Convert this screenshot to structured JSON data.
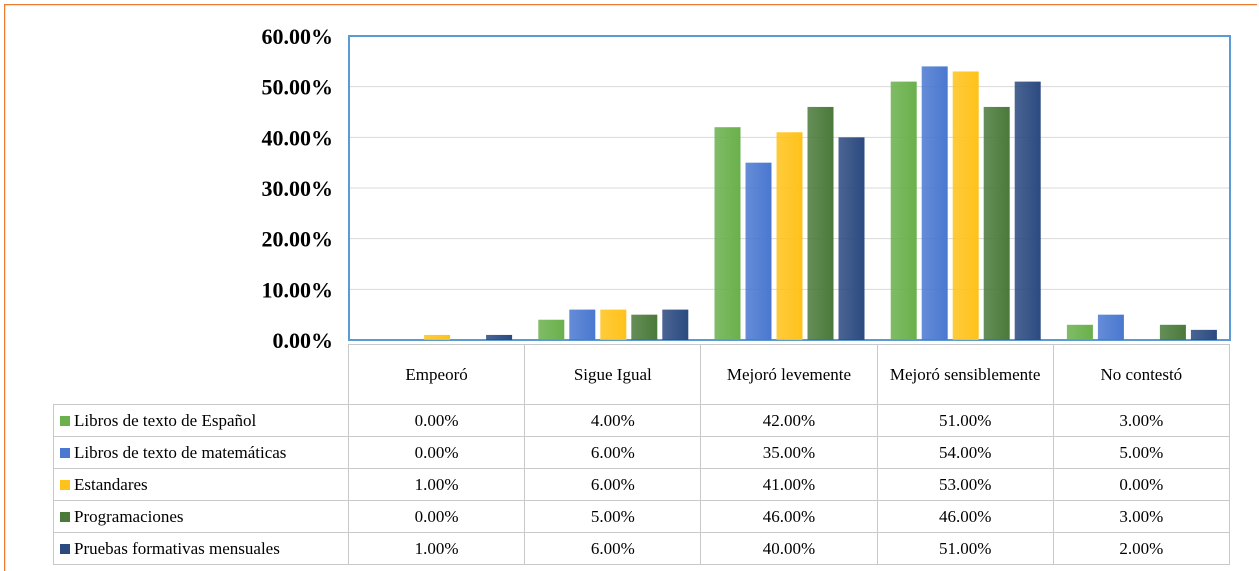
{
  "chart_data": {
    "type": "bar",
    "categories": [
      "Empeoró",
      "Sigue Igual",
      "Mejoró levemente",
      "Mejoró sensiblemente",
      "No contestó"
    ],
    "ylim": [
      0,
      60
    ],
    "yticks": [
      "0.00%",
      "10.00%",
      "20.00%",
      "30.00%",
      "40.00%",
      "50.00%",
      "60.00%"
    ],
    "grid": true,
    "legend": "data-table",
    "series": [
      {
        "name": "Libros de texto de Español",
        "color": "#6ab04c",
        "values": [
          0,
          4,
          42,
          51,
          3
        ],
        "labels": [
          "0.00%",
          "4.00%",
          "42.00%",
          "51.00%",
          "3.00%"
        ]
      },
      {
        "name": "Libros de texto de matemáticas",
        "color": "#4a78d0",
        "values": [
          0,
          6,
          35,
          54,
          5
        ],
        "labels": [
          "0.00%",
          "6.00%",
          "35.00%",
          "54.00%",
          "5.00%"
        ]
      },
      {
        "name": "Estandares",
        "color": "#ffc21a",
        "values": [
          1,
          6,
          41,
          53,
          0
        ],
        "labels": [
          "1.00%",
          "6.00%",
          "41.00%",
          "53.00%",
          "0.00%"
        ]
      },
      {
        "name": "Programaciones",
        "color": "#4a7a3a",
        "values": [
          0,
          5,
          46,
          46,
          3
        ],
        "labels": [
          "0.00%",
          "5.00%",
          "46.00%",
          "46.00%",
          "3.00%"
        ]
      },
      {
        "name": "Pruebas formativas mensuales",
        "color": "#2b4a80",
        "values": [
          1,
          6,
          40,
          51,
          2
        ],
        "labels": [
          "1.00%",
          "6.00%",
          "40.00%",
          "51.00%",
          "2.00%"
        ]
      }
    ]
  },
  "frame_color": "#ed7d31",
  "plot_border_color": "#5b9bd5"
}
